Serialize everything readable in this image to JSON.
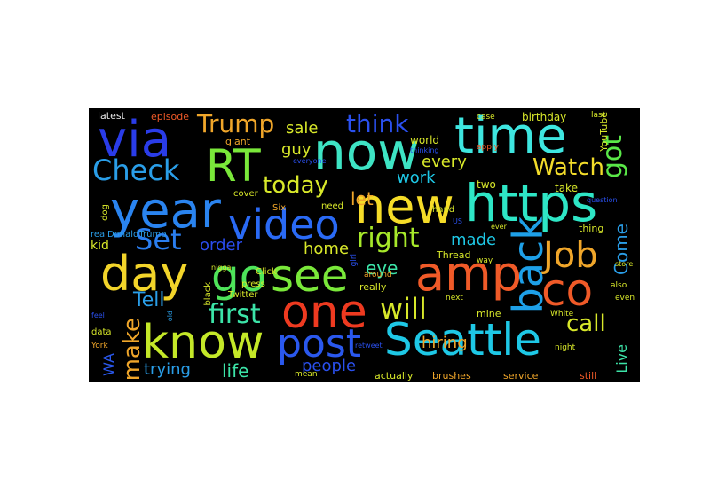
{
  "words": [
    {
      "text": "Seattle",
      "color": "#1ec8e6"
    },
    {
      "text": "https",
      "color": "#2ee6c6"
    },
    {
      "text": "amp",
      "color": "#f05a28"
    },
    {
      "text": "now",
      "color": "#3ee4c4"
    },
    {
      "text": "time",
      "color": "#3ee6e0"
    },
    {
      "text": "year",
      "color": "#2a84f0"
    },
    {
      "text": "new",
      "color": "#f5dc28"
    },
    {
      "text": "one",
      "color": "#ee3a20"
    },
    {
      "text": "know",
      "color": "#c4e828"
    },
    {
      "text": "day",
      "color": "#f2d42a"
    },
    {
      "text": "go",
      "color": "#4ee45a"
    },
    {
      "text": "see",
      "color": "#7ae83a"
    },
    {
      "text": "video",
      "color": "#2a6af5"
    },
    {
      "text": "post",
      "color": "#2a58ee"
    },
    {
      "text": "RT",
      "color": "#7ae83a"
    },
    {
      "text": "via",
      "color": "#2a3ce8"
    },
    {
      "text": "co",
      "color": "#f05a28"
    },
    {
      "text": "Job",
      "color": "#f0a62a"
    },
    {
      "text": "back",
      "color": "#1ea0e8"
    },
    {
      "text": "got",
      "color": "#5ae848"
    },
    {
      "text": "Check",
      "color": "#2a9ee8"
    },
    {
      "text": "Set",
      "color": "#2a7ef0"
    },
    {
      "text": "right",
      "color": "#a6e82a"
    },
    {
      "text": "will",
      "color": "#d8e82a"
    },
    {
      "text": "Watch",
      "color": "#f2dc2a"
    },
    {
      "text": "first",
      "color": "#3ce4a8"
    },
    {
      "text": "make",
      "color": "#f0a62a"
    },
    {
      "text": "think",
      "color": "#2a50ee"
    },
    {
      "text": "today",
      "color": "#d8e82a"
    },
    {
      "text": "Trump",
      "color": "#f0a62a"
    },
    {
      "text": "call",
      "color": "#d8e82a"
    },
    {
      "text": "Tell",
      "color": "#2a9ee8"
    },
    {
      "text": "order",
      "color": "#2a4cee"
    },
    {
      "text": "Come",
      "color": "#2a9ee8"
    },
    {
      "text": "life",
      "color": "#3ce4a8"
    },
    {
      "text": "people",
      "color": "#2a50ee"
    },
    {
      "text": "trying",
      "color": "#2a9ee8"
    },
    {
      "text": "hiring",
      "color": "#f0a62a"
    },
    {
      "text": "made",
      "color": "#1ec8e6"
    },
    {
      "text": "eye",
      "color": "#3ce4a8"
    },
    {
      "text": "home",
      "color": "#d8e82a"
    },
    {
      "text": "work",
      "color": "#1ec8e6"
    },
    {
      "text": "every",
      "color": "#d8e82a"
    },
    {
      "text": "let",
      "color": "#f0a62a"
    },
    {
      "text": "guy",
      "color": "#d8e82a"
    },
    {
      "text": "sale",
      "color": "#d8e82a"
    },
    {
      "text": "Live",
      "color": "#3ce4a8"
    },
    {
      "text": "WA",
      "color": "#2a58ee"
    },
    {
      "text": "kid",
      "color": "#d8e82a"
    },
    {
      "text": "latest",
      "color": "#e8e8e8"
    },
    {
      "text": "episode",
      "color": "#f05a28"
    },
    {
      "text": "birthday",
      "color": "#d8e82a"
    },
    {
      "text": "giant",
      "color": "#f0a62a"
    },
    {
      "text": "world",
      "color": "#d8e82a"
    },
    {
      "text": "two",
      "color": "#d8e82a"
    },
    {
      "text": "take",
      "color": "#d8e82a"
    },
    {
      "text": "thing",
      "color": "#d8e82a"
    },
    {
      "text": "Thread",
      "color": "#d8e82a"
    },
    {
      "text": "YouTube",
      "color": "#d8e82a"
    },
    {
      "text": "actually",
      "color": "#d8e82a"
    },
    {
      "text": "brushes",
      "color": "#f0a62a"
    },
    {
      "text": "service",
      "color": "#f0a62a"
    },
    {
      "text": "still",
      "color": "#f05a28"
    },
    {
      "text": "mine",
      "color": "#d8e82a"
    },
    {
      "text": "really",
      "color": "#d8e82a"
    },
    {
      "text": "data",
      "color": "#d8e82a"
    },
    {
      "text": "dog",
      "color": "#d8e82a"
    },
    {
      "text": "cover",
      "color": "#d8e82a"
    },
    {
      "text": "Six",
      "color": "#f0a62a"
    },
    {
      "text": "need",
      "color": "#d8e82a"
    },
    {
      "text": "hand",
      "color": "#d8e82a"
    },
    {
      "text": "realDonaldTrump",
      "color": "#2a9ee8"
    },
    {
      "text": "Twitter",
      "color": "#d8e82a"
    },
    {
      "text": "press",
      "color": "#d8e82a"
    },
    {
      "text": "black",
      "color": "#d8e82a"
    },
    {
      "text": "Click",
      "color": "#d8e82a"
    },
    {
      "text": "White",
      "color": "#d8e82a"
    },
    {
      "text": "next",
      "color": "#d8e82a"
    },
    {
      "text": "around",
      "color": "#f0a62a"
    },
    {
      "text": "night",
      "color": "#d8e82a"
    },
    {
      "text": "case",
      "color": "#d8e82a"
    },
    {
      "text": "last",
      "color": "#d8e82a"
    },
    {
      "text": "also",
      "color": "#d8e82a"
    },
    {
      "text": "even",
      "color": "#d8e82a"
    },
    {
      "text": "way",
      "color": "#d8e82a"
    },
    {
      "text": "apply",
      "color": "#f05a28"
    },
    {
      "text": "mean",
      "color": "#d8e82a"
    },
    {
      "text": "York",
      "color": "#f0a62a"
    },
    {
      "text": "girl",
      "color": "#2a50ee"
    },
    {
      "text": "store",
      "color": "#d8e82a"
    },
    {
      "text": "nigga",
      "color": "#d8e82a"
    },
    {
      "text": "question",
      "color": "#2a50ee"
    },
    {
      "text": "retweet",
      "color": "#2a50ee"
    },
    {
      "text": "old",
      "color": "#2a9ee8"
    },
    {
      "text": "feel",
      "color": "#2a50ee"
    },
    {
      "text": "thinking",
      "color": "#2a50ee"
    },
    {
      "text": "ever",
      "color": "#d8e82a"
    },
    {
      "text": "everyone",
      "color": "#2a50ee"
    },
    {
      "text": "US",
      "color": "#2a50ee"
    }
  ]
}
